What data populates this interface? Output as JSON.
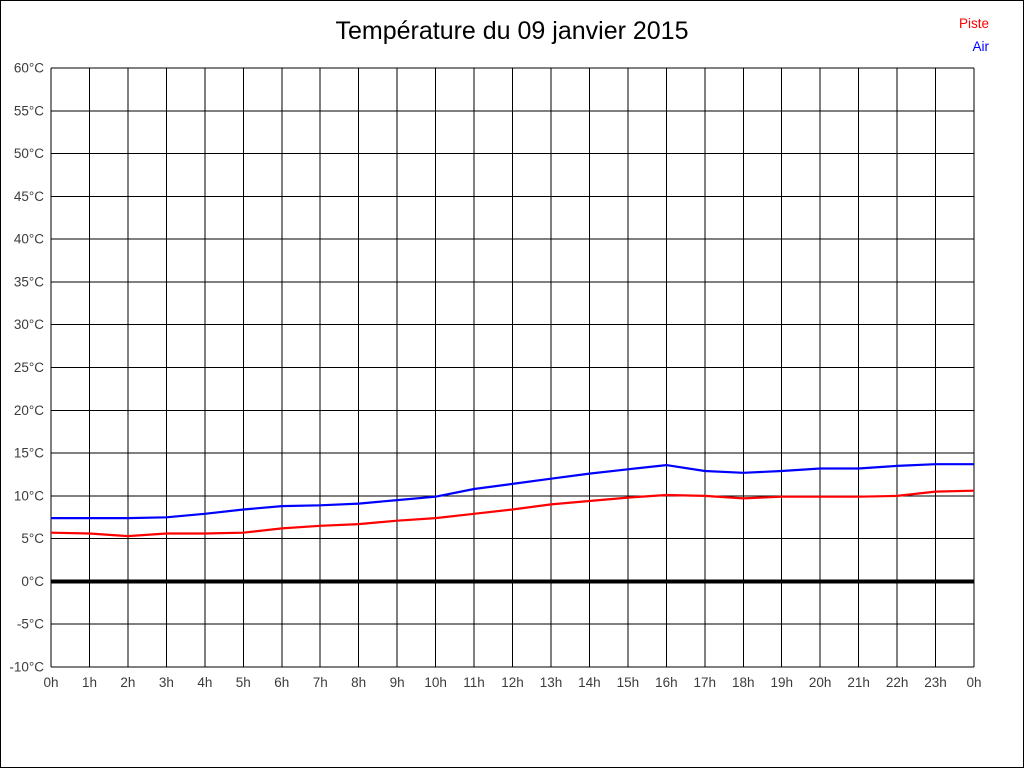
{
  "page": {
    "background": "#ffffff",
    "border_color": "#000000"
  },
  "chart_data": {
    "type": "line",
    "title": "Température du 09 janvier 2015",
    "xlabel": "",
    "ylabel": "",
    "grid": true,
    "legend_position": "top-right",
    "ylim": [
      -10,
      60
    ],
    "y_tick_step": 5,
    "y_tick_labels": [
      "60°C",
      "55°C",
      "50°C",
      "45°C",
      "40°C",
      "35°C",
      "30°C",
      "25°C",
      "20°C",
      "15°C",
      "10°C",
      "5°C",
      "0°C",
      "-5°C",
      "-10°C"
    ],
    "x_labels": [
      "0h",
      "1h",
      "2h",
      "3h",
      "4h",
      "5h",
      "6h",
      "7h",
      "8h",
      "9h",
      "10h",
      "11h",
      "12h",
      "13h",
      "14h",
      "15h",
      "16h",
      "17h",
      "18h",
      "19h",
      "20h",
      "21h",
      "22h",
      "23h",
      "0h"
    ],
    "zero_line": {
      "value": 0,
      "color": "#000000",
      "thick": true
    },
    "series": [
      {
        "name": "Piste",
        "color": "#ff0000",
        "values": [
          5.7,
          5.6,
          5.3,
          5.6,
          5.6,
          5.7,
          6.2,
          6.5,
          6.7,
          7.1,
          7.4,
          7.9,
          8.4,
          9.0,
          9.4,
          9.8,
          10.1,
          10.0,
          9.7,
          9.9,
          9.9,
          9.9,
          10.0,
          10.5,
          10.6
        ]
      },
      {
        "name": "Air",
        "color": "#0000ff",
        "values": [
          7.4,
          7.4,
          7.4,
          7.5,
          7.9,
          8.4,
          8.8,
          8.9,
          9.1,
          9.5,
          9.9,
          10.8,
          11.4,
          12.0,
          12.6,
          13.1,
          13.6,
          12.9,
          12.7,
          12.9,
          13.2,
          13.2,
          13.5,
          13.7,
          13.7
        ]
      }
    ]
  }
}
